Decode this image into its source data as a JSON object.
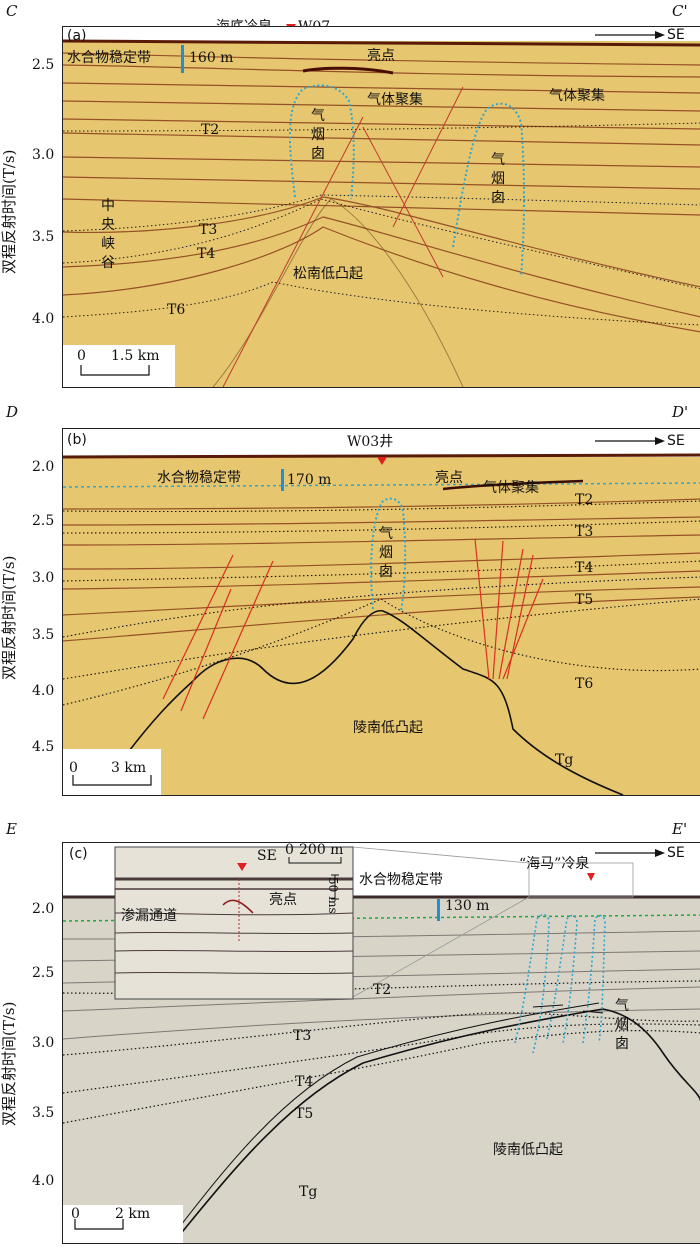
{
  "y_axis_label": "双程反射时间(T/s)",
  "direction_label": "SE",
  "panels": [
    {
      "letter": "(a)",
      "corner_left": "C",
      "corner_right": "C'",
      "yticks": [
        "2.5",
        "3.0",
        "3.5",
        "4.0"
      ],
      "feature_title": "海底冷泉",
      "well": "W07",
      "hsz_label": "水合物稳定带",
      "hsz_thickness": "160 m",
      "bright_spot": "亮点",
      "gas_accumulation_1": "气体聚集",
      "gas_accumulation_2": "气体聚集",
      "gas_chimney_1": "气烟囱",
      "gas_chimney_2": "气烟囱",
      "canyon": "中央峡谷",
      "horizons": [
        "T2",
        "T3",
        "T4",
        "T6"
      ],
      "uplift": "松南低凸起",
      "scale_zero": "0",
      "scale_value": "1.5 km",
      "colors": {
        "fill": "#e7c670",
        "reflector": "#7a2a0d",
        "chimney_outline": "#2ea7cf",
        "fault": "#c0392b",
        "marker": "#e02020"
      }
    },
    {
      "letter": "(b)",
      "corner_left": "D",
      "corner_right": "D'",
      "yticks": [
        "2.0",
        "2.5",
        "3.0",
        "3.5",
        "4.0",
        "4.5"
      ],
      "well": "W03井",
      "hsz_label": "水合物稳定带",
      "hsz_thickness": "170 m",
      "bright_spot": "亮点",
      "gas_accumulation": "气体聚集",
      "gas_chimney": "气烟囱",
      "horizons": [
        "T2",
        "T3",
        "T4",
        "T5",
        "T6",
        "Tg"
      ],
      "uplift": "陵南低凸起",
      "scale_zero": "0",
      "scale_value": "3 km"
    },
    {
      "letter": "(c)",
      "corner_left": "E",
      "corner_right": "E'",
      "yticks": [
        "2.0",
        "2.5",
        "3.0",
        "3.5",
        "4.0"
      ],
      "seep": "“海马”冷泉",
      "hsz_label": "水合物稳定带",
      "hsz_thickness": "130 m",
      "gas_chimney": "气烟囱",
      "horizons": [
        "T2",
        "T3",
        "T4",
        "T5",
        "Tg"
      ],
      "uplift": "陵南低凸起",
      "scale_zero": "0",
      "scale_value": "2 km",
      "inset": {
        "direction": "SE",
        "scale_zero": "0",
        "scale_value": "200 m",
        "time_scale": "50 ms",
        "leak_channel": "渗漏通道",
        "bright_spot": "亮点"
      },
      "colors": {
        "fill": "#d8d4c8",
        "reflector": "#5a5050",
        "hsz_line": "#1fa83a"
      }
    }
  ]
}
